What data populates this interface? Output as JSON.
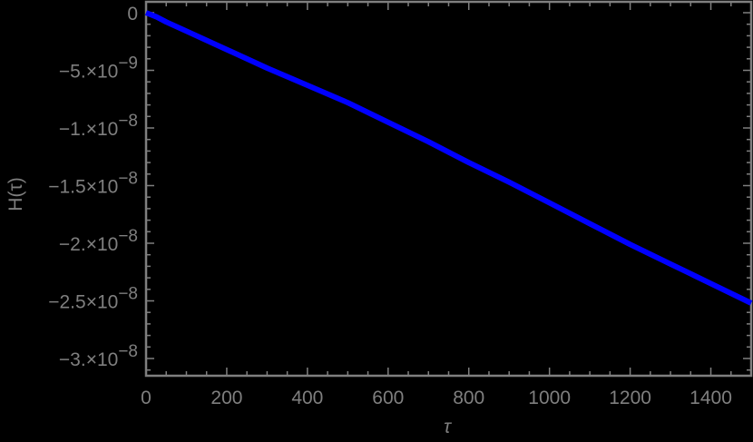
{
  "chart_data": {
    "type": "line",
    "title": "",
    "xlabel": "τ",
    "ylabel": "H(τ)",
    "xlim": [
      0,
      1500
    ],
    "ylim": [
      -3.15e-08,
      1e-10
    ],
    "grid": false,
    "legend": null,
    "frame": true,
    "x_ticks": [
      0,
      200,
      400,
      600,
      800,
      1000,
      1200,
      1400
    ],
    "x_tick_labels": [
      "0",
      "200",
      "400",
      "600",
      "800",
      "1000",
      "1200",
      "1400"
    ],
    "y_ticks": [
      0,
      -5e-09,
      -1e-08,
      -1.5e-08,
      -2e-08,
      -2.5e-08,
      -3e-08
    ],
    "y_tick_labels": [
      {
        "mantissa": "0",
        "exp": ""
      },
      {
        "mantissa": "−5.×10",
        "exp": "−9"
      },
      {
        "mantissa": "−1.×10",
        "exp": "−8"
      },
      {
        "mantissa": "−1.5×10",
        "exp": "−8"
      },
      {
        "mantissa": "−2.×10",
        "exp": "−8"
      },
      {
        "mantissa": "−2.5×10",
        "exp": "−8"
      },
      {
        "mantissa": "−3.×10",
        "exp": "−8"
      }
    ],
    "series": [
      {
        "name": "H(τ)",
        "color": "#0000ff",
        "x": [
          0,
          25,
          50,
          100,
          200,
          300,
          400,
          500,
          600,
          700,
          800,
          900,
          1000,
          1100,
          1200,
          1300,
          1400,
          1500
        ],
        "y": [
          0,
          -3.5e-10,
          -8e-10,
          -1.6e-09,
          -3.2e-09,
          -4.8e-09,
          -6.3e-09,
          -7.8e-09,
          -9.5e-09,
          -1.12e-08,
          -1.3e-08,
          -1.47e-08,
          -1.65e-08,
          -1.83e-08,
          -2.01e-08,
          -2.18e-08,
          -2.35e-08,
          -2.52e-08
        ]
      }
    ]
  },
  "colors": {
    "background": "#000000",
    "axes": "#7f7f7f",
    "line": "#0000ff"
  }
}
